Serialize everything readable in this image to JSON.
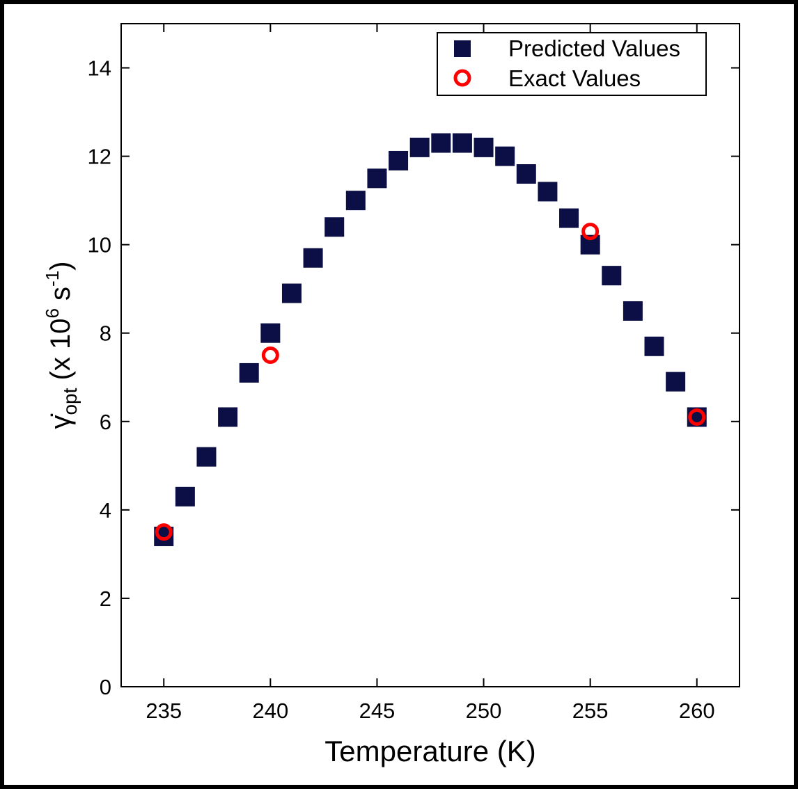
{
  "chart_data": {
    "type": "scatter",
    "xlabel": "Temperature (K)",
    "ylabel": {
      "symbol": "γ̇",
      "subscript": "opt",
      "mid": " (x 10",
      "exp1": "6",
      "unit": " s",
      "exp2": "-1",
      "end": ")"
    },
    "xlim": [
      233,
      262
    ],
    "ylim": [
      0,
      15
    ],
    "x_ticks": [
      235,
      240,
      245,
      250,
      255,
      260
    ],
    "y_ticks": [
      0,
      2,
      4,
      6,
      8,
      10,
      12,
      14
    ],
    "legend_position": "top-right",
    "series": [
      {
        "name": "Predicted Values",
        "marker": "square",
        "color": "#0b0f45",
        "x": [
          235,
          236,
          237,
          238,
          239,
          240,
          241,
          242,
          243,
          244,
          245,
          246,
          247,
          248,
          249,
          250,
          251,
          252,
          253,
          254,
          255,
          256,
          257,
          258,
          259,
          260
        ],
        "y": [
          3.4,
          4.3,
          5.2,
          6.1,
          7.1,
          8.0,
          8.9,
          9.7,
          10.4,
          11.0,
          11.5,
          11.9,
          12.2,
          12.3,
          12.3,
          12.2,
          12.0,
          11.6,
          11.2,
          10.6,
          10.0,
          9.3,
          8.5,
          7.7,
          6.9,
          6.1
        ]
      },
      {
        "name": "Exact Values",
        "marker": "open-circle",
        "color": "#ff0000",
        "x": [
          235,
          240,
          255,
          260
        ],
        "y": [
          3.5,
          7.5,
          10.3,
          6.1
        ]
      }
    ]
  }
}
